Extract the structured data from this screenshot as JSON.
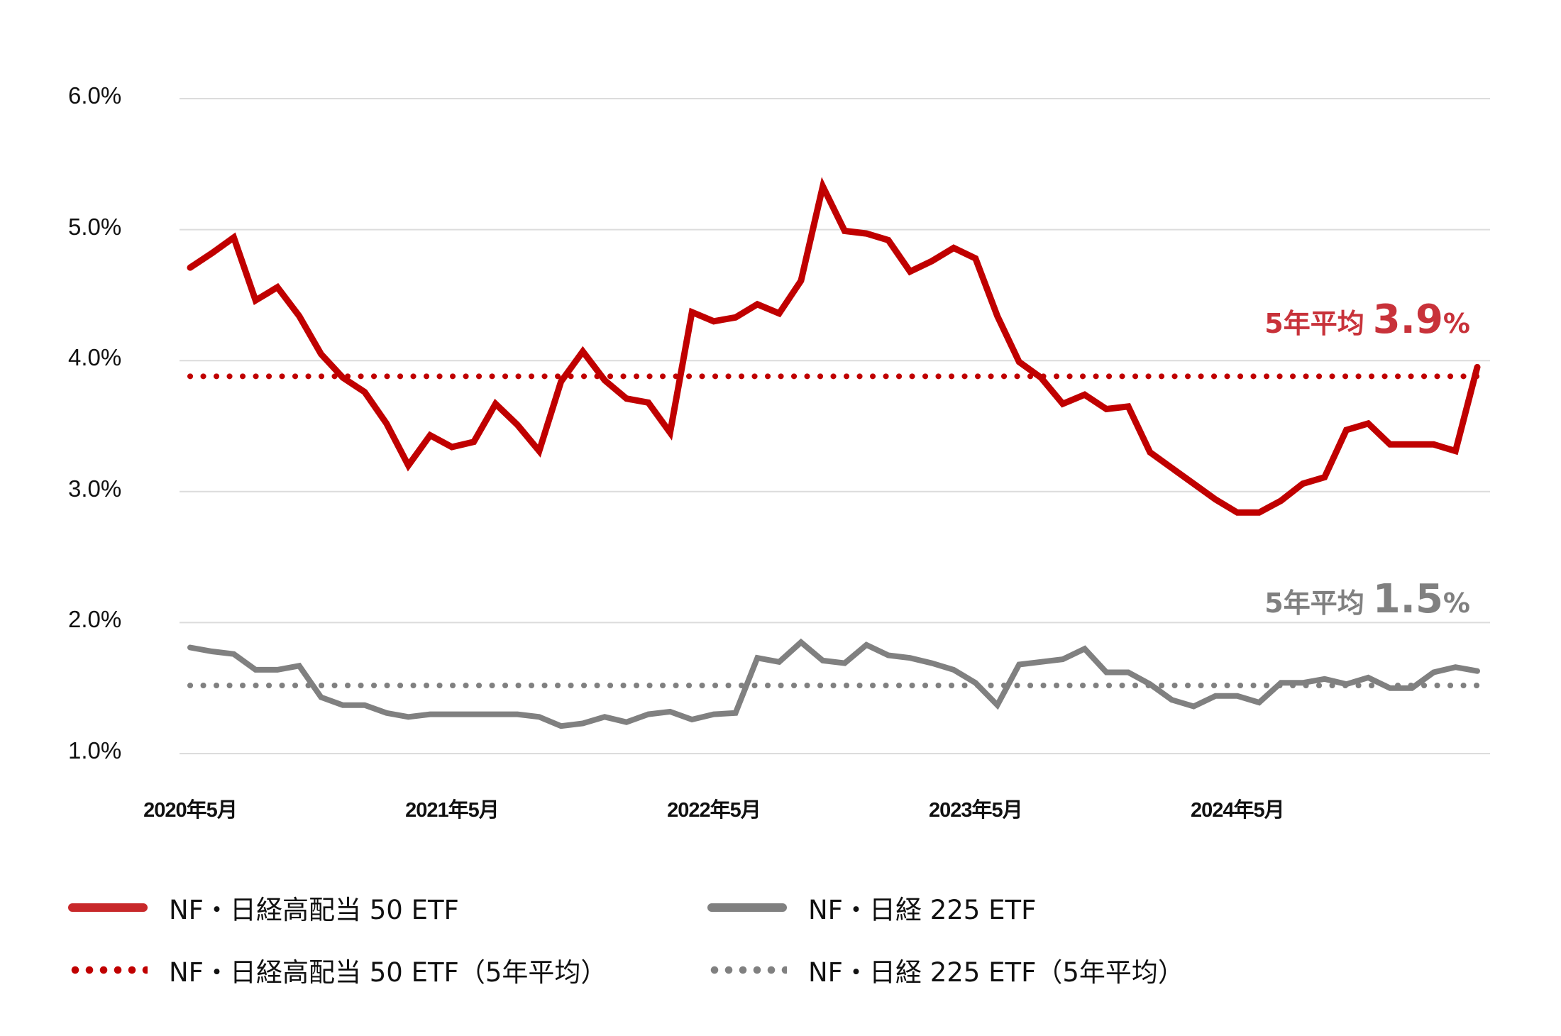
{
  "chart_data": {
    "type": "line",
    "title": "",
    "xlabel": "",
    "ylabel": "",
    "ylim": [
      1.0,
      6.0
    ],
    "grid": true,
    "y_ticks": [
      "6.0%",
      "5.0%",
      "4.0%",
      "3.0%",
      "2.0%",
      "1.0%"
    ],
    "x_tick_labels": [
      "2020年5月",
      "2021年5月",
      "2022年5月",
      "2023年5月",
      "2024年5月"
    ],
    "x_tick_indices": [
      0,
      12,
      24,
      36,
      48
    ],
    "x": [
      "2020-05",
      "2020-06",
      "2020-07",
      "2020-08",
      "2020-09",
      "2020-10",
      "2020-11",
      "2020-12",
      "2021-01",
      "2021-02",
      "2021-03",
      "2021-04",
      "2021-05",
      "2021-06",
      "2021-07",
      "2021-08",
      "2021-09",
      "2021-10",
      "2021-11",
      "2021-12",
      "2022-01",
      "2022-02",
      "2022-03",
      "2022-04",
      "2022-05",
      "2022-06",
      "2022-07",
      "2022-08",
      "2022-09",
      "2022-10",
      "2022-11",
      "2022-12",
      "2023-01",
      "2023-02",
      "2023-03",
      "2023-04",
      "2023-05",
      "2023-06",
      "2023-07",
      "2023-08",
      "2023-09",
      "2023-10",
      "2023-11",
      "2023-12",
      "2024-01",
      "2024-02",
      "2024-03",
      "2024-04",
      "2024-05",
      "2024-06",
      "2024-07",
      "2024-08",
      "2024-09",
      "2024-10",
      "2024-11",
      "2024-12",
      "2025-01",
      "2025-02",
      "2025-03",
      "2025-04"
    ],
    "series": [
      {
        "name": "NF・日経高配当 50 ETF",
        "color": "#c00000",
        "style": "solid",
        "values": [
          4.71,
          4.82,
          4.94,
          4.46,
          4.56,
          4.34,
          4.05,
          3.87,
          3.76,
          3.52,
          3.2,
          3.43,
          3.34,
          3.38,
          3.67,
          3.51,
          3.31,
          3.84,
          4.07,
          3.85,
          3.71,
          3.68,
          3.45,
          4.37,
          4.3,
          4.33,
          4.43,
          4.36,
          4.61,
          5.33,
          4.99,
          4.97,
          4.92,
          4.68,
          4.76,
          4.86,
          4.78,
          4.34,
          3.99,
          3.87,
          3.67,
          3.74,
          3.63,
          3.65,
          3.3,
          3.18,
          3.06,
          2.94,
          2.84,
          2.84,
          2.93,
          3.06,
          3.11,
          3.47,
          3.52,
          3.36,
          3.36,
          3.36,
          3.31,
          3.95
        ]
      },
      {
        "name": "NF・日経 225 ETF",
        "color": "#808080",
        "style": "solid",
        "values": [
          1.81,
          1.78,
          1.76,
          1.64,
          1.64,
          1.67,
          1.43,
          1.37,
          1.37,
          1.31,
          1.28,
          1.3,
          1.3,
          1.3,
          1.3,
          1.3,
          1.28,
          1.21,
          1.23,
          1.28,
          1.24,
          1.3,
          1.32,
          1.26,
          1.3,
          1.31,
          1.73,
          1.7,
          1.85,
          1.71,
          1.69,
          1.83,
          1.75,
          1.73,
          1.69,
          1.64,
          1.54,
          1.37,
          1.68,
          1.7,
          1.72,
          1.8,
          1.62,
          1.62,
          1.53,
          1.41,
          1.36,
          1.44,
          1.44,
          1.39,
          1.54,
          1.54,
          1.57,
          1.53,
          1.58,
          1.5,
          1.5,
          1.62,
          1.66,
          1.63
        ]
      },
      {
        "name": "NF・日経高配当 50 ETF（5年平均）",
        "color": "#c00000",
        "style": "dotted",
        "value": 3.88
      },
      {
        "name": "NF・日経 225 ETF（5年平均）",
        "color": "#808080",
        "style": "dotted",
        "value": 1.52
      }
    ],
    "annotations": [
      {
        "text": "5年平均 3.9%",
        "color": "#c8323a",
        "y": 3.9
      },
      {
        "text": "5年平均 1.5%",
        "color": "#808080",
        "y": 1.5
      }
    ],
    "legend_position": "bottom"
  },
  "annotations": {
    "high_dividend": {
      "prefix": "5年平均",
      "number": "3.9",
      "unit": "%",
      "color": "#c8323a"
    },
    "nikkei225": {
      "prefix": "5年平均",
      "number": "1.5",
      "unit": "%",
      "color": "#808080"
    }
  },
  "legend": {
    "items": [
      {
        "label": "NF・日経高配当 50 ETF",
        "color": "#c8282a",
        "style": "solid"
      },
      {
        "label": "NF・日経 225 ETF",
        "color": "#808080",
        "style": "solid"
      },
      {
        "label": "NF・日経高配当 50 ETF（5年平均）",
        "color": "#c00000",
        "style": "dotted"
      },
      {
        "label": "NF・日経 225 ETF（5年平均）",
        "color": "#808080",
        "style": "dotted"
      }
    ]
  }
}
